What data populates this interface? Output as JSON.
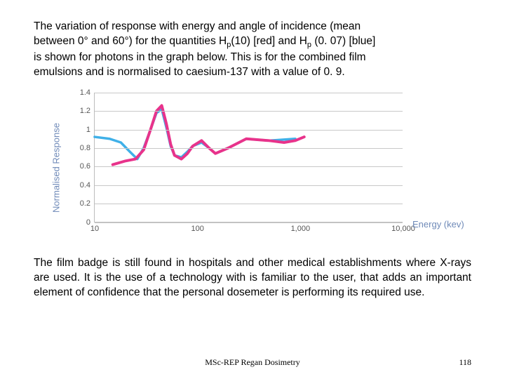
{
  "para1": {
    "l1a": "The variation of response with energy and angle of incidence (mean",
    "l2a": "between 0° and 60°) for the quantities H",
    "l2sub1": "p",
    "l2b": "(10) [red] and H",
    "l2sub2": "p",
    "l2c": " (0. 07) [blue]",
    "l3": "is shown for photons in the graph below. This is for the combined film",
    "l4": "emulsions and is normalised to caesium-137 with a value of 0. 9."
  },
  "para2": "The film badge is still found in hospitals and other medical establishments where X-rays are used.  It is the use of a technology with is familiar to the user, that adds an important element of confidence that the personal dosemeter is performing its required use.",
  "footer": "MSc-REP Regan Dosimetry",
  "pagenum": "118",
  "chart": {
    "type": "line",
    "ylabel": "Normalised Response",
    "xlabel": "Energy (kev)",
    "ylim": [
      0,
      1.4
    ],
    "yticks": [
      0,
      0.2,
      0.4,
      0.6,
      0.8,
      1,
      1.2,
      1.4
    ],
    "xlog_range": [
      10,
      10000
    ],
    "xticks": [
      {
        "v": 10,
        "label": "10"
      },
      {
        "v": 100,
        "label": "100"
      },
      {
        "v": 1000,
        "label": "1,000"
      },
      {
        "v": 10000,
        "label": "10,000"
      }
    ],
    "grid_color": "#c8c8c8",
    "axis_label_color": "#6f8ab8",
    "background_color": "#ffffff",
    "series": [
      {
        "name": "Hp(0.07)",
        "color": "#3fb0e8",
        "stroke_width": 3.5,
        "points": [
          [
            10,
            0.92
          ],
          [
            14,
            0.9
          ],
          [
            18,
            0.86
          ],
          [
            22,
            0.76
          ],
          [
            26,
            0.68
          ],
          [
            30,
            0.8
          ],
          [
            35,
            1.0
          ],
          [
            40,
            1.18
          ],
          [
            45,
            1.22
          ],
          [
            50,
            1.02
          ],
          [
            55,
            0.82
          ],
          [
            60,
            0.72
          ],
          [
            70,
            0.7
          ],
          [
            80,
            0.76
          ],
          [
            90,
            0.82
          ],
          [
            110,
            0.86
          ],
          [
            130,
            0.8
          ],
          [
            150,
            0.74
          ],
          [
            200,
            0.8
          ],
          [
            300,
            0.9
          ],
          [
            500,
            0.88
          ],
          [
            900,
            0.9
          ]
        ]
      },
      {
        "name": "Hp(10)",
        "color": "#e8338b",
        "stroke_width": 4,
        "points": [
          [
            15,
            0.62
          ],
          [
            20,
            0.66
          ],
          [
            25,
            0.68
          ],
          [
            30,
            0.78
          ],
          [
            35,
            1.0
          ],
          [
            40,
            1.2
          ],
          [
            45,
            1.26
          ],
          [
            50,
            1.06
          ],
          [
            55,
            0.84
          ],
          [
            60,
            0.72
          ],
          [
            70,
            0.68
          ],
          [
            80,
            0.74
          ],
          [
            90,
            0.82
          ],
          [
            110,
            0.88
          ],
          [
            130,
            0.8
          ],
          [
            150,
            0.74
          ],
          [
            200,
            0.8
          ],
          [
            300,
            0.9
          ],
          [
            500,
            0.88
          ],
          [
            700,
            0.86
          ],
          [
            900,
            0.88
          ],
          [
            1100,
            0.92
          ]
        ]
      }
    ]
  }
}
